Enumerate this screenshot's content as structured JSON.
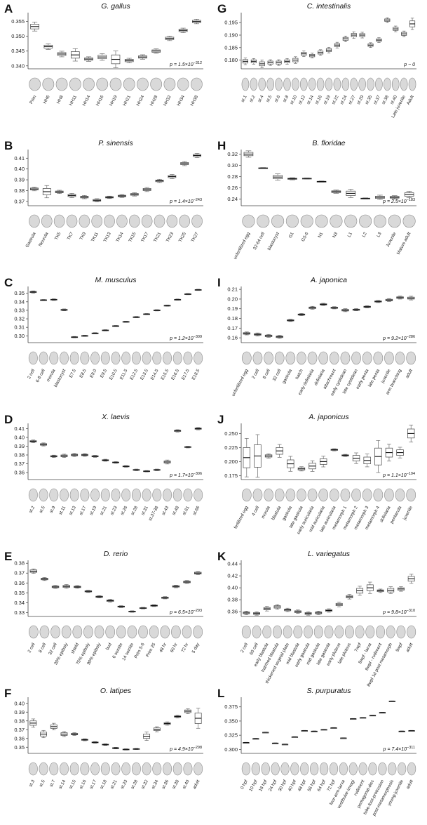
{
  "chart_data": [
    {
      "type": "box",
      "letter": "A",
      "title": "G. gallus",
      "pvalue": "p = 1.5×10",
      "pexp": "−312",
      "ylim": [
        0.339,
        0.358
      ],
      "yticks": [
        "0.340",
        "0.345",
        "0.350",
        "0.355"
      ],
      "ytick_values": [
        0.34,
        0.345,
        0.35,
        0.355
      ],
      "categories": [
        "Prim",
        "HH6",
        "HH8",
        "HH11",
        "HH14",
        "HH16",
        "HH19",
        "HH21",
        "HH24",
        "HH28",
        "HH32",
        "HH34",
        "HH38"
      ],
      "medians": [
        0.3533,
        0.3465,
        0.344,
        0.3437,
        0.3423,
        0.343,
        0.3422,
        0.3418,
        0.343,
        0.345,
        0.3493,
        0.352,
        0.355
      ],
      "spreads": [
        0.0008,
        0.0005,
        0.0005,
        0.0011,
        0.0004,
        0.0006,
        0.0015,
        0.0004,
        0.0004,
        0.0004,
        0.0004,
        0.0004,
        0.0004
      ]
    },
    {
      "type": "box",
      "letter": "B",
      "title": "P. sinensis",
      "pvalue": "p = 1.4×10",
      "pexp": "−243",
      "ylim": [
        0.366,
        0.418
      ],
      "yticks": [
        "0.37",
        "0.38",
        "0.39",
        "0.40",
        "0.41"
      ],
      "ytick_values": [
        0.37,
        0.38,
        0.39,
        0.4,
        0.41
      ],
      "categories": [
        "Gastrula",
        "Neurula",
        "TK5",
        "TK7",
        "TK9",
        "TK11",
        "TK13",
        "TK14",
        "TK15",
        "TK17",
        "TK21",
        "TK23",
        "TK25",
        "TK27"
      ],
      "medians": [
        0.3815,
        0.379,
        0.3788,
        0.3755,
        0.374,
        0.371,
        0.3738,
        0.375,
        0.3765,
        0.381,
        0.389,
        0.393,
        0.405,
        0.4125
      ],
      "spreads": [
        0.0009,
        0.003,
        0.0008,
        0.001,
        0.0008,
        0.0008,
        0.0006,
        0.0007,
        0.0008,
        0.001,
        0.0008,
        0.001,
        0.001,
        0.001
      ]
    },
    {
      "type": "box",
      "letter": "C",
      "title": "M. musculus",
      "pvalue": "p = 1.2×10",
      "pexp": "−309",
      "ylim": [
        0.292,
        0.358
      ],
      "yticks": [
        "0.30",
        "0.31",
        "0.32",
        "0.33",
        "0.34",
        "0.35"
      ],
      "ytick_values": [
        0.3,
        0.31,
        0.32,
        0.33,
        0.34,
        0.35
      ],
      "categories": [
        "2 cell",
        "6-8 cell",
        "morula",
        "blastocyst",
        "E7.5",
        "E8.5",
        "E9.0",
        "E9.5",
        "E10.5",
        "E11.5",
        "E12.5",
        "E13.5",
        "E14.5",
        "E15.5",
        "E16.5",
        "E17.5",
        "E18.5"
      ],
      "medians": [
        0.3515,
        0.342,
        0.3425,
        0.3305,
        0.2985,
        0.3,
        0.303,
        0.3065,
        0.3115,
        0.3165,
        0.322,
        0.3255,
        0.33,
        0.3355,
        0.3425,
        0.349,
        0.354
      ],
      "spreads": [
        0.0007,
        0.0004,
        0.0005,
        0.0006,
        0.0004,
        0.0004,
        0.0004,
        0.0004,
        0.0004,
        0.0004,
        0.0004,
        0.0004,
        0.0004,
        0.0004,
        0.0004,
        0.0004,
        0.0004
      ]
    },
    {
      "type": "box",
      "letter": "D",
      "title": "X. laevis",
      "pvalue": "p = 1.7×10",
      "pexp": "−306",
      "ylim": [
        0.352,
        0.416
      ],
      "yticks": [
        "0.36",
        "0.37",
        "0.38",
        "0.39",
        "0.40",
        "0.41"
      ],
      "ytick_values": [
        0.36,
        0.37,
        0.38,
        0.39,
        0.4,
        0.41
      ],
      "categories": [
        "st.2",
        "st.5",
        "st.9",
        "st.11",
        "st.13",
        "st.17",
        "st.19",
        "st.21",
        "st.23",
        "st.26",
        "st.28",
        "st.31",
        "st.37-38",
        "st.43",
        "st.48",
        "st.61",
        "st.66"
      ],
      "medians": [
        0.3955,
        0.392,
        0.3785,
        0.379,
        0.38,
        0.38,
        0.3785,
        0.374,
        0.3715,
        0.367,
        0.363,
        0.3615,
        0.363,
        0.372,
        0.4075,
        0.389,
        0.41
      ],
      "spreads": [
        0.0008,
        0.0009,
        0.0007,
        0.001,
        0.0009,
        0.0008,
        0.0006,
        0.0006,
        0.0005,
        0.0005,
        0.0005,
        0.0004,
        0.0005,
        0.0012,
        0.0007,
        0.0005,
        0.0007
      ]
    },
    {
      "type": "box",
      "letter": "E",
      "title": "D. rerio",
      "pvalue": "p = 6.5×10",
      "pexp": "−293",
      "ylim": [
        0.326,
        0.383
      ],
      "yticks": [
        "0.33",
        "0.34",
        "0.35",
        "0.36",
        "0.37",
        "0.38"
      ],
      "ytick_values": [
        0.33,
        0.34,
        0.35,
        0.36,
        0.37,
        0.38
      ],
      "categories": [
        "2 cell",
        "8 cell",
        "32 cell",
        "30% epiboly",
        "shield",
        "75% epiboly",
        "90% epiboly",
        "bud",
        "6 somite",
        "14 somite",
        "Prim 5-6",
        "Prim 25",
        "48 hr",
        "60 hr",
        "72 hr",
        "5 day"
      ],
      "medians": [
        0.372,
        0.364,
        0.356,
        0.3565,
        0.356,
        0.3515,
        0.346,
        0.342,
        0.336,
        0.331,
        0.3345,
        0.337,
        0.345,
        0.3565,
        0.361,
        0.37
      ],
      "spreads": [
        0.0012,
        0.0008,
        0.0008,
        0.001,
        0.0007,
        0.0006,
        0.0006,
        0.0008,
        0.0005,
        0.0004,
        0.0004,
        0.0005,
        0.0006,
        0.0007,
        0.0008,
        0.0009
      ]
    },
    {
      "type": "box",
      "letter": "F",
      "title": "O. latipes",
      "pvalue": "p = 4.9×10",
      "pexp": "−298",
      "ylim": [
        0.343,
        0.407
      ],
      "yticks": [
        "0.35",
        "0.36",
        "0.37",
        "0.38",
        "0.39",
        "0.40"
      ],
      "ytick_values": [
        0.35,
        0.36,
        0.37,
        0.38,
        0.39,
        0.4
      ],
      "categories": [
        "st.3",
        "st.5",
        "st.7",
        "st.14",
        "st.15",
        "st.16",
        "st.17",
        "st.18",
        "st.21",
        "st.23",
        "st.28",
        "st.32",
        "st.34",
        "st.36",
        "st.38",
        "st.40",
        "adult"
      ],
      "medians": [
        0.3775,
        0.365,
        0.3735,
        0.365,
        0.365,
        0.3585,
        0.3555,
        0.353,
        0.349,
        0.3475,
        0.348,
        0.3625,
        0.3705,
        0.377,
        0.385,
        0.391,
        0.383
      ],
      "spreads": [
        0.0025,
        0.0022,
        0.002,
        0.0015,
        0.0008,
        0.0006,
        0.0005,
        0.0005,
        0.0005,
        0.0004,
        0.0004,
        0.0025,
        0.0015,
        0.001,
        0.0008,
        0.0015,
        0.006
      ]
    },
    {
      "type": "box",
      "letter": "G",
      "title": "C. intestinalis",
      "pvalue": "p ~ 0",
      "pexp": "",
      "ylim": [
        0.1765,
        0.199
      ],
      "yticks": [
        "0.180",
        "0.185",
        "0.190",
        "0.195"
      ],
      "ytick_values": [
        0.18,
        0.185,
        0.19,
        0.195
      ],
      "categories": [
        "st.1",
        "st.2",
        "st.4",
        "st.5",
        "st.6",
        "st.8",
        "st.10",
        "st.12",
        "st.14",
        "st.16",
        "st.19",
        "st.22",
        "st.24",
        "st.27",
        "st.29",
        "st.35",
        "st.37",
        "st.38",
        "st.40",
        "Late juvenile",
        "Adult"
      ],
      "medians": [
        0.1795,
        0.1795,
        0.1785,
        0.179,
        0.179,
        0.1795,
        0.18,
        0.1825,
        0.1818,
        0.183,
        0.184,
        0.186,
        0.1885,
        0.19,
        0.19,
        0.186,
        0.188,
        0.196,
        0.1925,
        0.1905,
        0.1945
      ],
      "spreads": [
        0.0007,
        0.0006,
        0.0008,
        0.0006,
        0.0006,
        0.0006,
        0.0007,
        0.0006,
        0.0005,
        0.0006,
        0.0006,
        0.0006,
        0.0006,
        0.0007,
        0.0006,
        0.0005,
        0.0005,
        0.0005,
        0.0006,
        0.0006,
        0.0012
      ]
    },
    {
      "type": "box",
      "letter": "H",
      "title": "B. floridae",
      "pvalue": "p = 2.5×10",
      "pexp": "−183",
      "ylim": [
        0.228,
        0.328
      ],
      "yticks": [
        "0.24",
        "0.26",
        "0.28",
        "0.30",
        "0.32"
      ],
      "ytick_values": [
        0.24,
        0.26,
        0.28,
        0.3,
        0.32
      ],
      "categories": [
        "unfertilized egg",
        "32-64 cell",
        "blastocyst",
        "G1",
        "G5-6",
        "N1",
        "N3",
        "L1",
        "L2",
        "L3",
        "Juvenile",
        "Mature adult"
      ],
      "medians": [
        0.32,
        0.295,
        0.279,
        0.276,
        0.2765,
        0.271,
        0.253,
        0.25,
        0.241,
        0.243,
        0.243,
        0.248
      ],
      "spreads": [
        0.003,
        0.0005,
        0.003,
        0.001,
        0.0005,
        0.0005,
        0.0015,
        0.004,
        0.0005,
        0.002,
        0.0015,
        0.003
      ]
    },
    {
      "type": "box",
      "letter": "I",
      "title": "A. japonica",
      "pvalue": "p = 9.2×10",
      "pexp": "−286",
      "ylim": [
        0.155,
        0.213
      ],
      "yticks": [
        "0.16",
        "0.17",
        "0.18",
        "0.19",
        "0.20",
        "0.21"
      ],
      "ytick_values": [
        0.16,
        0.17,
        0.18,
        0.19,
        0.2,
        0.21
      ],
      "categories": [
        "unfertilized egg",
        "2 cell",
        "8 cell",
        "32 cell",
        "gastrula",
        "hatch",
        "early doliolaria",
        "doliolaria",
        "attachment",
        "early cystidean",
        "late cystidean",
        "early penta",
        "late penta",
        "juvenile",
        "arm branching",
        "adult"
      ],
      "medians": [
        0.1645,
        0.1635,
        0.162,
        0.161,
        0.178,
        0.184,
        0.191,
        0.1945,
        0.191,
        0.1885,
        0.189,
        0.192,
        0.1975,
        0.199,
        0.2015,
        0.201
      ],
      "spreads": [
        0.0008,
        0.0008,
        0.0008,
        0.0008,
        0.0006,
        0.0006,
        0.0008,
        0.0006,
        0.0006,
        0.0008,
        0.0006,
        0.0006,
        0.0006,
        0.0008,
        0.0008,
        0.001
      ]
    },
    {
      "type": "box",
      "letter": "J",
      "title": "A. japonicus",
      "pvalue": "p = 1.1×10",
      "pexp": "−194",
      "ylim": [
        0.168,
        0.268
      ],
      "yticks": [
        "0.175",
        "0.200",
        "0.225",
        "0.250"
      ],
      "ytick_values": [
        0.175,
        0.2,
        0.225,
        0.25
      ],
      "categories": [
        "fertilized egg",
        "4 cell",
        "morula",
        "blastula",
        "gastrula",
        "late gastrula",
        "early auricularia",
        "mid auricularia",
        "late auricularia",
        "metamorph 1",
        "metamorph 2",
        "metamorph 3",
        "metamorph 4",
        "doliolaria",
        "pentacula",
        "juvenile"
      ],
      "medians": [
        0.207,
        0.21,
        0.21,
        0.219,
        0.196,
        0.187,
        0.192,
        0.2,
        0.221,
        0.211,
        0.206,
        0.202,
        0.209,
        0.216,
        0.216,
        0.25
      ],
      "spreads": [
        0.018,
        0.02,
        0.002,
        0.006,
        0.007,
        0.002,
        0.005,
        0.005,
        0.001,
        0.001,
        0.005,
        0.006,
        0.015,
        0.008,
        0.005,
        0.008
      ]
    },
    {
      "type": "box",
      "letter": "K",
      "title": "L. variegatus",
      "pvalue": "p = 9.8×10",
      "pexp": "−310",
      "ylim": [
        0.352,
        0.446
      ],
      "yticks": [
        "0.36",
        "0.38",
        "0.40",
        "0.42",
        "0.44"
      ],
      "ytick_values": [
        0.36,
        0.38,
        0.4,
        0.42,
        0.44
      ],
      "categories": [
        "2 cell",
        "60 cell",
        "early blastula",
        "hatched blastula",
        "thickened vegetal plate",
        "mid blastula",
        "early gastrula",
        "mid gastrula",
        "late gastrula",
        "early pluteus",
        "late pluteus",
        "7wpf",
        "8wpf - larva",
        "8wpf - rudiment",
        "8wpf 1d post metamorph",
        "9wpf",
        "adult"
      ],
      "medians": [
        0.358,
        0.357,
        0.365,
        0.368,
        0.363,
        0.36,
        0.357,
        0.358,
        0.362,
        0.372,
        0.385,
        0.395,
        0.4,
        0.395,
        0.396,
        0.398,
        0.415
      ],
      "spreads": [
        0.0015,
        0.0015,
        0.002,
        0.002,
        0.0015,
        0.0015,
        0.0015,
        0.0015,
        0.0015,
        0.002,
        0.002,
        0.004,
        0.005,
        0.0015,
        0.003,
        0.002,
        0.004
      ]
    },
    {
      "type": "box",
      "letter": "L",
      "title": "S. purpuratus",
      "pvalue": "p = 7.4×10",
      "pexp": "−311",
      "ylim": [
        0.293,
        0.392
      ],
      "yticks": [
        "0.300",
        "0.325",
        "0.350",
        "0.375"
      ],
      "ytick_values": [
        0.3,
        0.325,
        0.35,
        0.375
      ],
      "categories": [
        "0 hpf",
        "10 hpf",
        "18 hpf",
        "24 hpf",
        "30 hpf",
        "40 hpf",
        "48 hpf",
        "56 hpf",
        "64 hpf",
        "72 hpf",
        "four-arm-larva",
        "vestibular-invagi",
        "rudiment",
        "pentagonal-disc",
        "tube-foot-protrusion",
        "post-metamorphosis",
        "young-juvenile",
        "adult"
      ],
      "medians": [
        0.312,
        0.319,
        0.33,
        0.311,
        0.309,
        0.322,
        0.333,
        0.332,
        0.335,
        0.338,
        0.32,
        0.354,
        0.356,
        0.36,
        0.365,
        0.385,
        0.332,
        0.333
      ],
      "spreads": [
        0.0003,
        0.0003,
        0.0003,
        0.0003,
        0.0003,
        0.0003,
        0.0003,
        0.0003,
        0.0003,
        0.0003,
        0.0003,
        0.0003,
        0.0003,
        0.0003,
        0.0003,
        0.0003,
        0.0003,
        0.0003
      ]
    }
  ]
}
